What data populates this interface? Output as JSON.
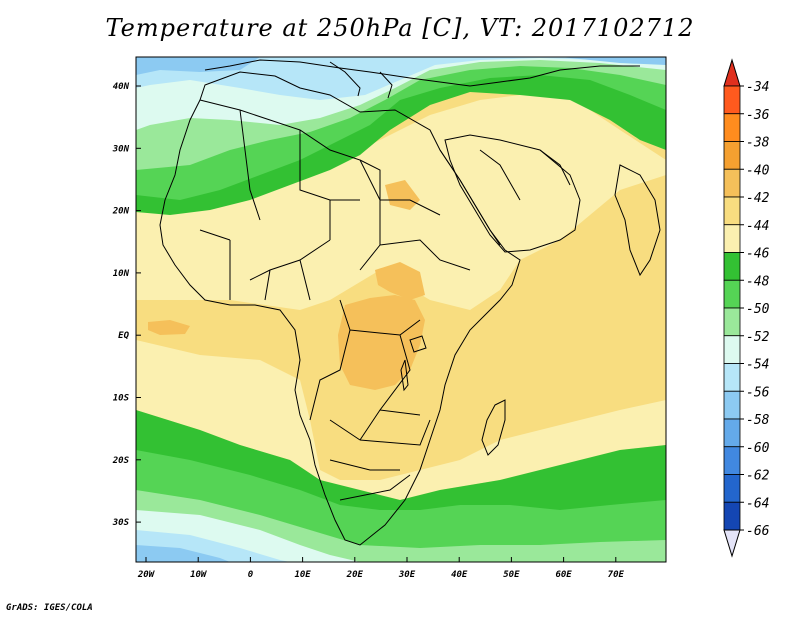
{
  "title": "Temperature at 250hPa [C], VT: 2017102712",
  "credit": "GrADS: IGES/COLA",
  "longitude_labels": [
    "20W",
    "10W",
    "0",
    "10E",
    "20E",
    "30E",
    "40E",
    "50E",
    "60E",
    "70E"
  ],
  "latitude_labels": [
    "40N",
    "30N",
    "20N",
    "10N",
    "EQ",
    "10S",
    "20S",
    "30S"
  ],
  "colorbar": {
    "labels": [
      "-34",
      "-36",
      "-38",
      "-40",
      "-42",
      "-44",
      "-46",
      "-48",
      "-50",
      "-52",
      "-54",
      "-56",
      "-58",
      "-60",
      "-62",
      "-64",
      "-66"
    ],
    "colors": [
      "#ff5a1e",
      "#ff8c1e",
      "#f5a030",
      "#f5c05a",
      "#f8dd80",
      "#fbf0b0",
      "#33c133",
      "#55d455",
      "#9ae89a",
      "#ddfaf0",
      "#b6e6f8",
      "#8ccaf2",
      "#64aaea",
      "#4188e0",
      "#2366cd",
      "#1446b3",
      "#0a1e7a"
    ],
    "arrow_top_color": "#e0301e",
    "arrow_bottom_color": "#e4e4f8"
  }
}
